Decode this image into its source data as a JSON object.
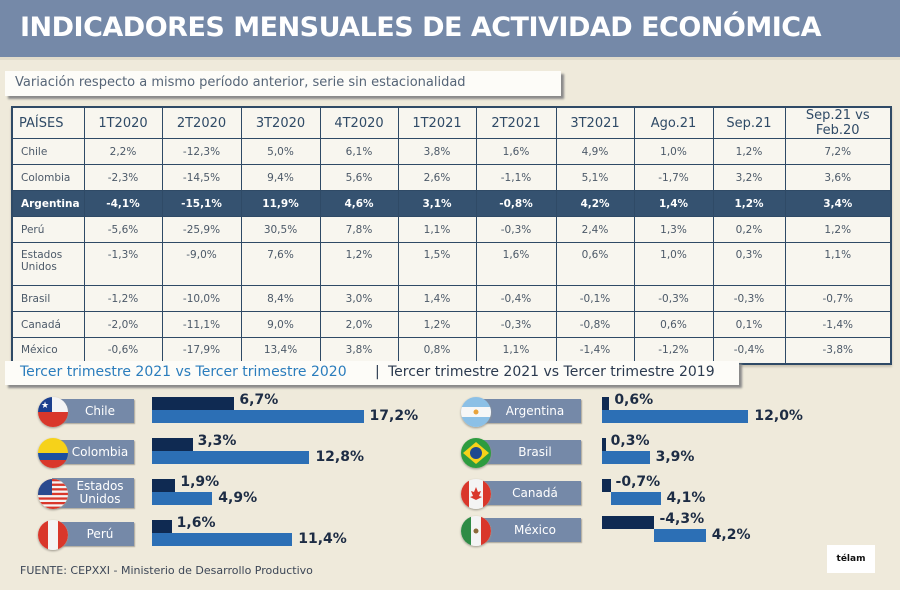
{
  "header": {
    "title": "INDICADORES MENSUALES DE ACTIVIDAD ECONÓMICA"
  },
  "subtitle": "Variación respecto a mismo período anterior, serie sin estacionalidad",
  "table": {
    "columns": [
      "PAÍSES",
      "1T2020",
      "2T2020",
      "3T2020",
      "4T2020",
      "1T2021",
      "2T2021",
      "3T2021",
      "Ago.21",
      "Sep.21",
      "Sep.21 vs Feb.20"
    ],
    "rows": [
      {
        "country": "Chile",
        "values": [
          "2,2%",
          "-12,3%",
          "5,0%",
          "6,1%",
          "3,8%",
          "1,6%",
          "4,9%",
          "1,0%",
          "1,2%",
          "7,2%"
        ]
      },
      {
        "country": "Colombia",
        "values": [
          "-2,3%",
          "-14,5%",
          "9,4%",
          "5,6%",
          "2,6%",
          "-1,1%",
          "5,1%",
          "-1,7%",
          "3,2%",
          "3,6%"
        ]
      },
      {
        "country": "Argentina",
        "highlight": true,
        "values": [
          "-4,1%",
          "-15,1%",
          "11,9%",
          "4,6%",
          "3,1%",
          "-0,8%",
          "4,2%",
          "1,4%",
          "1,2%",
          "3,4%"
        ]
      },
      {
        "country": "Perú",
        "values": [
          "-5,6%",
          "-25,9%",
          "30,5%",
          "7,8%",
          "1,1%",
          "-0,3%",
          "2,4%",
          "1,3%",
          "0,2%",
          "1,2%"
        ]
      },
      {
        "country": "Estados Unidos",
        "values": [
          "-1,3%",
          "-9,0%",
          "7,6%",
          "1,2%",
          "1,5%",
          "1,6%",
          "0,6%",
          "1,0%",
          "0,3%",
          "1,1%"
        ]
      },
      {
        "country": "Brasil",
        "values": [
          "-1,2%",
          "-10,0%",
          "8,4%",
          "3,0%",
          "1,4%",
          "-0,4%",
          "-0,1%",
          "-0,3%",
          "-0,3%",
          "-0,7%"
        ]
      },
      {
        "country": "Canadá",
        "values": [
          "-2,0%",
          "-11,1%",
          "9,0%",
          "2,0%",
          "1,2%",
          "-0,3%",
          "-0,8%",
          "0,6%",
          "0,1%",
          "-1,4%"
        ]
      },
      {
        "country": "México",
        "values": [
          "-0,6%",
          "-17,9%",
          "13,4%",
          "3,8%",
          "0,8%",
          "1,1%",
          "-1,4%",
          "-1,2%",
          "-0,4%",
          "-3,8%"
        ]
      }
    ]
  },
  "section": {
    "left_title": "Tercer trimestre 2021 vs Tercer trimestre 2020",
    "separator": "|",
    "right_title": "Tercer trimestre 2021 vs Tercer trimestre 2019"
  },
  "chart_data": {
    "type": "bar",
    "orientation": "horizontal",
    "series": [
      {
        "name": "Tercer trimestre 2021 vs Tercer trimestre 2019",
        "color": "#0f2a52"
      },
      {
        "name": "Tercer trimestre 2021 vs Tercer trimestre 2020",
        "color": "#2c6fb5"
      }
    ],
    "groups": [
      {
        "position": "left",
        "items": [
          {
            "country": "Chile",
            "flag": "chile-flag",
            "vs2019": 6.7,
            "vs2019_label": "6,7%",
            "vs2020": 17.2,
            "vs2020_label": "17,2%"
          },
          {
            "country": "Colombia",
            "flag": "colombia-flag",
            "vs2019": 3.3,
            "vs2019_label": "3,3%",
            "vs2020": 12.8,
            "vs2020_label": "12,8%"
          },
          {
            "country": "Estados\nUnidos",
            "flag": "usa-flag",
            "vs2019": 1.9,
            "vs2019_label": "1,9%",
            "vs2020": 4.9,
            "vs2020_label": "4,9%"
          },
          {
            "country": "Perú",
            "flag": "peru-flag",
            "vs2019": 1.6,
            "vs2019_label": "1,6%",
            "vs2020": 11.4,
            "vs2020_label": "11,4%"
          }
        ]
      },
      {
        "position": "right",
        "items": [
          {
            "country": "Argentina",
            "flag": "argentina-flag",
            "vs2019": 0.6,
            "vs2019_label": "0,6%",
            "vs2020": 12.0,
            "vs2020_label": "12,0%"
          },
          {
            "country": "Brasil",
            "flag": "brazil-flag",
            "vs2019": 0.3,
            "vs2019_label": "0,3%",
            "vs2020": 3.9,
            "vs2020_label": "3,9%"
          },
          {
            "country": "Canadá",
            "flag": "canada-flag",
            "vs2019": -0.7,
            "vs2019_label": "-0,7%",
            "vs2020": 4.1,
            "vs2020_label": "4,1%"
          },
          {
            "country": "México",
            "flag": "mexico-flag",
            "vs2019": -4.3,
            "vs2019_label": "-4,3%",
            "vs2020": 4.2,
            "vs2020_label": "4,2%"
          }
        ]
      }
    ],
    "title": "Tercer trimestre 2021 vs Tercer trimestre 2020 | Tercer trimestre 2021 vs Tercer trimestre 2019"
  },
  "footer": "FUENTE: CEPXXI - Ministerio de Desarrollo Productivo",
  "logo": "télam"
}
